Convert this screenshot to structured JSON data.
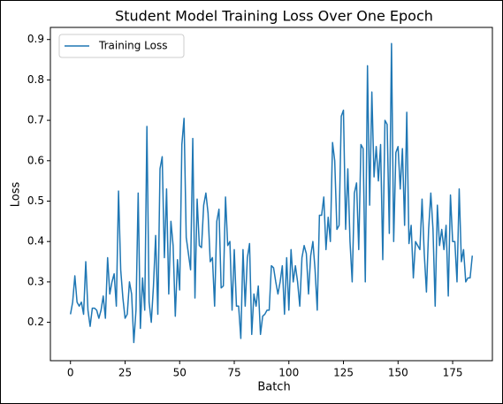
{
  "chart_data": {
    "type": "line",
    "title": "Student Model Training Loss Over One Epoch",
    "xlabel": "Batch",
    "ylabel": "Loss",
    "legend": "upper left",
    "x": [
      0,
      1,
      2,
      3,
      4,
      5,
      6,
      7,
      8,
      9,
      10,
      11,
      12,
      13,
      14,
      15,
      16,
      17,
      18,
      19,
      20,
      21,
      22,
      23,
      24,
      25,
      26,
      27,
      28,
      29,
      30,
      31,
      32,
      33,
      34,
      35,
      36,
      37,
      38,
      39,
      40,
      41,
      42,
      43,
      44,
      45,
      46,
      47,
      48,
      49,
      50,
      51,
      52,
      53,
      54,
      55,
      56,
      57,
      58,
      59,
      60,
      61,
      62,
      63,
      64,
      65,
      66,
      67,
      68,
      69,
      70,
      71,
      72,
      73,
      74,
      75,
      76,
      77,
      78,
      79,
      80,
      81,
      82,
      83,
      84,
      85,
      86,
      87,
      88,
      89,
      90,
      91,
      92,
      93,
      94,
      95,
      96,
      97,
      98,
      99,
      100,
      101,
      102,
      103,
      104,
      105,
      106,
      107,
      108,
      109,
      110,
      111,
      112,
      113,
      114,
      115,
      116,
      117,
      118,
      119,
      120,
      121,
      122,
      123,
      124,
      125,
      126,
      127,
      128,
      129,
      130,
      131,
      132,
      133,
      134,
      135,
      136,
      137,
      138,
      139,
      140,
      141,
      142,
      143,
      144,
      145,
      146,
      147,
      148,
      149,
      150,
      151,
      152,
      153,
      154,
      155,
      156,
      157,
      158,
      159,
      160,
      161,
      162,
      163,
      164,
      165,
      166,
      167,
      168,
      169,
      170,
      171,
      172,
      173,
      174,
      175,
      176,
      177,
      178,
      179,
      180,
      181,
      182,
      183,
      184
    ],
    "series": [
      {
        "name": "Training Loss",
        "color": "#1f77b4",
        "values": [
          0.22,
          0.25,
          0.315,
          0.25,
          0.24,
          0.25,
          0.22,
          0.35,
          0.23,
          0.19,
          0.235,
          0.235,
          0.23,
          0.21,
          0.23,
          0.265,
          0.21,
          0.36,
          0.27,
          0.3,
          0.32,
          0.24,
          0.525,
          0.33,
          0.26,
          0.21,
          0.22,
          0.3,
          0.27,
          0.15,
          0.23,
          0.52,
          0.185,
          0.31,
          0.23,
          0.685,
          0.25,
          0.2,
          0.29,
          0.415,
          0.22,
          0.58,
          0.61,
          0.36,
          0.53,
          0.27,
          0.45,
          0.39,
          0.215,
          0.355,
          0.28,
          0.64,
          0.705,
          0.41,
          0.37,
          0.33,
          0.655,
          0.26,
          0.505,
          0.39,
          0.385,
          0.49,
          0.52,
          0.47,
          0.35,
          0.36,
          0.24,
          0.45,
          0.48,
          0.285,
          0.29,
          0.51,
          0.39,
          0.4,
          0.23,
          0.38,
          0.24,
          0.24,
          0.16,
          0.38,
          0.24,
          0.36,
          0.395,
          0.17,
          0.27,
          0.24,
          0.29,
          0.17,
          0.215,
          0.22,
          0.23,
          0.23,
          0.34,
          0.335,
          0.3,
          0.27,
          0.3,
          0.34,
          0.22,
          0.36,
          0.23,
          0.38,
          0.3,
          0.34,
          0.3,
          0.24,
          0.36,
          0.39,
          0.37,
          0.27,
          0.365,
          0.4,
          0.33,
          0.23,
          0.465,
          0.465,
          0.51,
          0.38,
          0.46,
          0.4,
          0.645,
          0.6,
          0.43,
          0.44,
          0.71,
          0.725,
          0.43,
          0.58,
          0.4,
          0.3,
          0.52,
          0.545,
          0.38,
          0.64,
          0.63,
          0.3,
          0.835,
          0.49,
          0.77,
          0.56,
          0.635,
          0.55,
          0.64,
          0.355,
          0.7,
          0.69,
          0.42,
          0.89,
          0.4,
          0.62,
          0.635,
          0.53,
          0.63,
          0.44,
          0.72,
          0.395,
          0.44,
          0.31,
          0.4,
          0.39,
          0.38,
          0.505,
          0.37,
          0.275,
          0.43,
          0.52,
          0.43,
          0.24,
          0.49,
          0.39,
          0.43,
          0.38,
          0.44,
          0.265,
          0.515,
          0.4,
          0.4,
          0.3,
          0.53,
          0.35,
          0.38,
          0.3,
          0.31,
          0.31,
          0.365
        ]
      }
    ],
    "xlim": [
      -9.2,
      193.2
    ],
    "xticks": [
      0,
      25,
      50,
      75,
      100,
      125,
      150,
      175
    ],
    "ylim": [
      0.105,
      0.93
    ],
    "yticks": [
      0.2,
      0.3,
      0.4,
      0.5,
      0.6,
      0.7,
      0.8,
      0.9
    ]
  }
}
